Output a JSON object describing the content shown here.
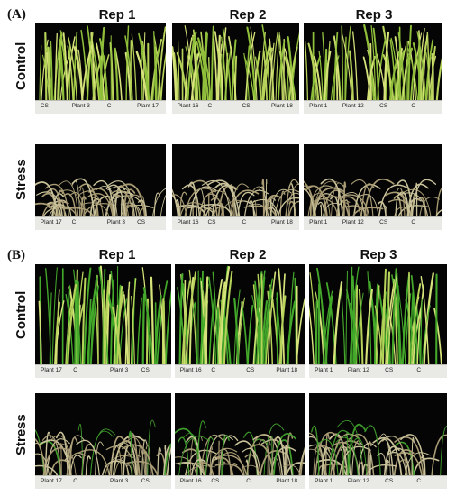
{
  "panels": [
    {
      "label": "(A)",
      "reps": [
        "Rep 1",
        "Rep 2",
        "Rep 3"
      ],
      "rows": [
        {
          "name": "Control",
          "type": "control",
          "tone": "a",
          "labels": [
            [
              "CS",
              "Plant 3",
              "C",
              "Plant 17"
            ],
            [
              "Plant 16",
              "C",
              "CS",
              "Plant 18"
            ],
            [
              "Plant 1",
              "Plant 12",
              "CS",
              "C"
            ]
          ]
        },
        {
          "name": "Stress",
          "type": "stress",
          "tone": "a",
          "labels": [
            [
              "Plant 17",
              "C",
              "Plant 3",
              "CS"
            ],
            [
              "Plant 16",
              "CS",
              "C",
              "Plant 18"
            ],
            [
              "Plant 1",
              "Plant 12",
              "CS",
              "C"
            ]
          ]
        }
      ]
    },
    {
      "label": "(B)",
      "reps": [
        "Rep 1",
        "Rep 2",
        "Rep 3"
      ],
      "rows": [
        {
          "name": "Control",
          "type": "control",
          "tone": "b",
          "labels": [
            [
              "Plant 17",
              "C",
              "Plant 3",
              "CS"
            ],
            [
              "Plant 16",
              "C",
              "CS",
              "Plant 18"
            ],
            [
              "Plant 1",
              "Plant 12",
              "CS",
              "C"
            ]
          ]
        },
        {
          "name": "Stress",
          "type": "stress",
          "tone": "b",
          "labels": [
            [
              "Plant 17",
              "C",
              "Plant 3",
              "CS"
            ],
            [
              "Plant 16",
              "CS",
              "C",
              "Plant 18"
            ],
            [
              "Plant 1",
              "Plant 12",
              "CS",
              "C"
            ]
          ]
        }
      ]
    }
  ],
  "colors": {
    "control_green_a": "#8fbf3a",
    "control_green_b": "#43a82a",
    "stress_straw": "#c9c29a",
    "background": "#050505",
    "board": "#e9e9e6"
  }
}
